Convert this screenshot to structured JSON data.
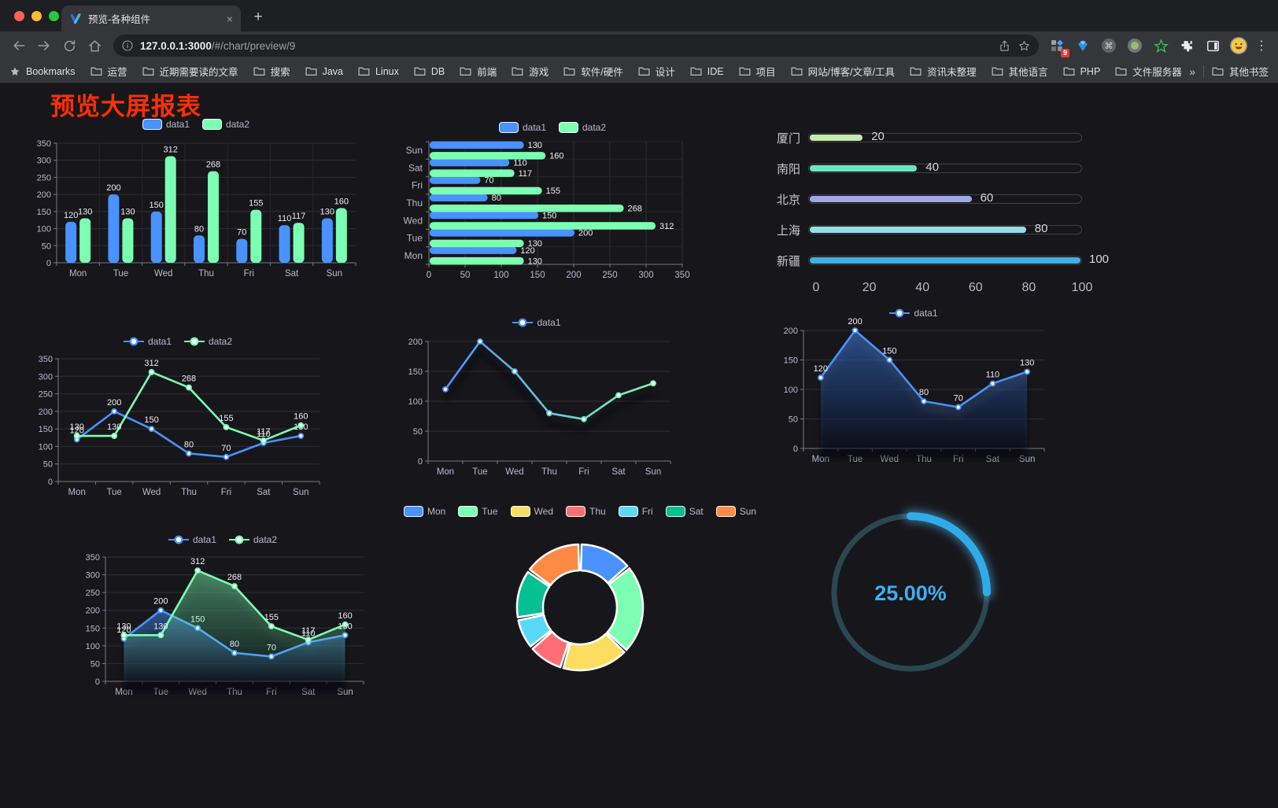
{
  "browser": {
    "tab_title": "预览-各种组件",
    "url_host": "127.0.0.1:3000",
    "url_path": "/#/chart/preview/9",
    "extension_badge": "9",
    "bookmarks_bar": {
      "label": "Bookmarks",
      "folders": [
        "运营",
        "近期需要读的文章",
        "搜索",
        "Java",
        "Linux",
        "DB",
        "前端",
        "游戏",
        "软件/硬件",
        "设计",
        "IDE",
        "项目",
        "网站/博客/文章/工具",
        "资讯未整理",
        "其他语言",
        "PHP",
        "文件服务器"
      ],
      "overflow": "»",
      "other": "其他书签"
    }
  },
  "icons": {
    "new_tab": "+",
    "tab_close": "×",
    "menu_dots": "⋮"
  },
  "page": {
    "title": "预览大屏报表",
    "title_color": "#ff2f00",
    "background": "#17171b"
  },
  "chart_style": {
    "axis_text": "#b9b8ce",
    "axis_line": "#767a85",
    "grid_line": "#2e2e37",
    "split_line": "#26262e",
    "value_label": "#ececf2",
    "legend_text": "#b9b8ce"
  },
  "chart_data": [
    {
      "id": "c1",
      "type": "bar",
      "legend_pos": "top",
      "categories": [
        "Mon",
        "Tue",
        "Wed",
        "Thu",
        "Fri",
        "Sat",
        "Sun"
      ],
      "series": [
        {
          "name": "data1",
          "color": "#4992ff",
          "values": [
            120,
            200,
            150,
            80,
            70,
            110,
            130
          ]
        },
        {
          "name": "data2",
          "color": "#7cffb2",
          "values": [
            130,
            130,
            312,
            268,
            155,
            117,
            160
          ]
        }
      ],
      "ylim": [
        0,
        350
      ],
      "ystep": 50,
      "value_labels": true,
      "grid": true
    },
    {
      "id": "c2",
      "type": "bar-horizontal",
      "legend_pos": "top",
      "categories": [
        "Mon",
        "Tue",
        "Wed",
        "Thu",
        "Fri",
        "Sat",
        "Sun"
      ],
      "series": [
        {
          "name": "data1",
          "color": "#4992ff",
          "values": [
            120,
            200,
            150,
            80,
            70,
            110,
            130
          ]
        },
        {
          "name": "data2",
          "color": "#7cffb2",
          "values": [
            130,
            130,
            312,
            268,
            155,
            117,
            160
          ]
        }
      ],
      "xlim": [
        0,
        350
      ],
      "xstep": 50,
      "value_labels": true,
      "grid": true
    },
    {
      "id": "c3",
      "type": "progress-bars",
      "items": [
        {
          "label": "厦门",
          "value": 20,
          "color": "#c4ebad"
        },
        {
          "label": "南阳",
          "value": 40,
          "color": "#6be6c1"
        },
        {
          "label": "北京",
          "value": 60,
          "color": "#a0a7e6"
        },
        {
          "label": "上海",
          "value": 80,
          "color": "#96dee8"
        },
        {
          "label": "新疆",
          "value": 100,
          "color": "#3fb1e3"
        }
      ],
      "xlim": [
        0,
        100
      ],
      "xticks": [
        0,
        20,
        40,
        60,
        80,
        100
      ]
    },
    {
      "id": "c4",
      "type": "line",
      "legend_pos": "top",
      "categories": [
        "Mon",
        "Tue",
        "Wed",
        "Thu",
        "Fri",
        "Sat",
        "Sun"
      ],
      "series": [
        {
          "name": "data1",
          "color": "#4992ff",
          "values": [
            120,
            200,
            150,
            80,
            70,
            110,
            130
          ]
        },
        {
          "name": "data2",
          "color": "#7cffb2",
          "values": [
            130,
            130,
            312,
            268,
            155,
            117,
            160
          ]
        }
      ],
      "ylim": [
        0,
        350
      ],
      "ystep": 50,
      "value_labels": true
    },
    {
      "id": "c5",
      "type": "line",
      "legend_pos": "top",
      "categories": [
        "Mon",
        "Tue",
        "Wed",
        "Thu",
        "Fri",
        "Sat",
        "Sun"
      ],
      "series": [
        {
          "name": "data1",
          "gradient": [
            "#4992ff",
            "#7cffb2"
          ],
          "values": [
            120,
            200,
            150,
            80,
            70,
            110,
            130
          ]
        }
      ],
      "ylim": [
        0,
        200
      ],
      "ystep": 50,
      "value_labels": false,
      "shadow": true
    },
    {
      "id": "c6",
      "type": "line",
      "legend_pos": "top",
      "categories": [
        "Mon",
        "Tue",
        "Wed",
        "Thu",
        "Fri",
        "Sat",
        "Sun"
      ],
      "series": [
        {
          "name": "data1",
          "color": "#4992ff",
          "values": [
            120,
            200,
            150,
            80,
            70,
            110,
            130
          ],
          "area": true
        }
      ],
      "ylim": [
        0,
        200
      ],
      "ystep": 50,
      "value_labels": true,
      "shadow": true
    },
    {
      "id": "c7",
      "type": "line",
      "legend_pos": "top",
      "categories": [
        "Mon",
        "Tue",
        "Wed",
        "Thu",
        "Fri",
        "Sat",
        "Sun"
      ],
      "series": [
        {
          "name": "data1",
          "color": "#4992ff",
          "values": [
            120,
            200,
            150,
            80,
            70,
            110,
            130
          ],
          "area": true
        },
        {
          "name": "data2",
          "color": "#7cffb2",
          "values": [
            130,
            130,
            312,
            268,
            155,
            117,
            160
          ],
          "area": true
        }
      ],
      "ylim": [
        0,
        350
      ],
      "ystep": 50,
      "value_labels": true,
      "shadow": true
    },
    {
      "id": "c8",
      "type": "pie",
      "legend_pos": "top",
      "categories": [
        "Mon",
        "Tue",
        "Wed",
        "Thu",
        "Fri",
        "Sat",
        "Sun"
      ],
      "values": [
        120,
        200,
        150,
        80,
        70,
        110,
        130
      ],
      "colors": [
        "#4992ff",
        "#7cffb2",
        "#fddd60",
        "#ff6e76",
        "#58d9f9",
        "#05c091",
        "#ff8a45"
      ],
      "donut": true
    },
    {
      "id": "c9",
      "type": "gauge",
      "value": 25,
      "label": "25.00%",
      "progress_color": "#2fabe9",
      "track_color": "#2a4753",
      "text_color": "#41aef0"
    }
  ]
}
